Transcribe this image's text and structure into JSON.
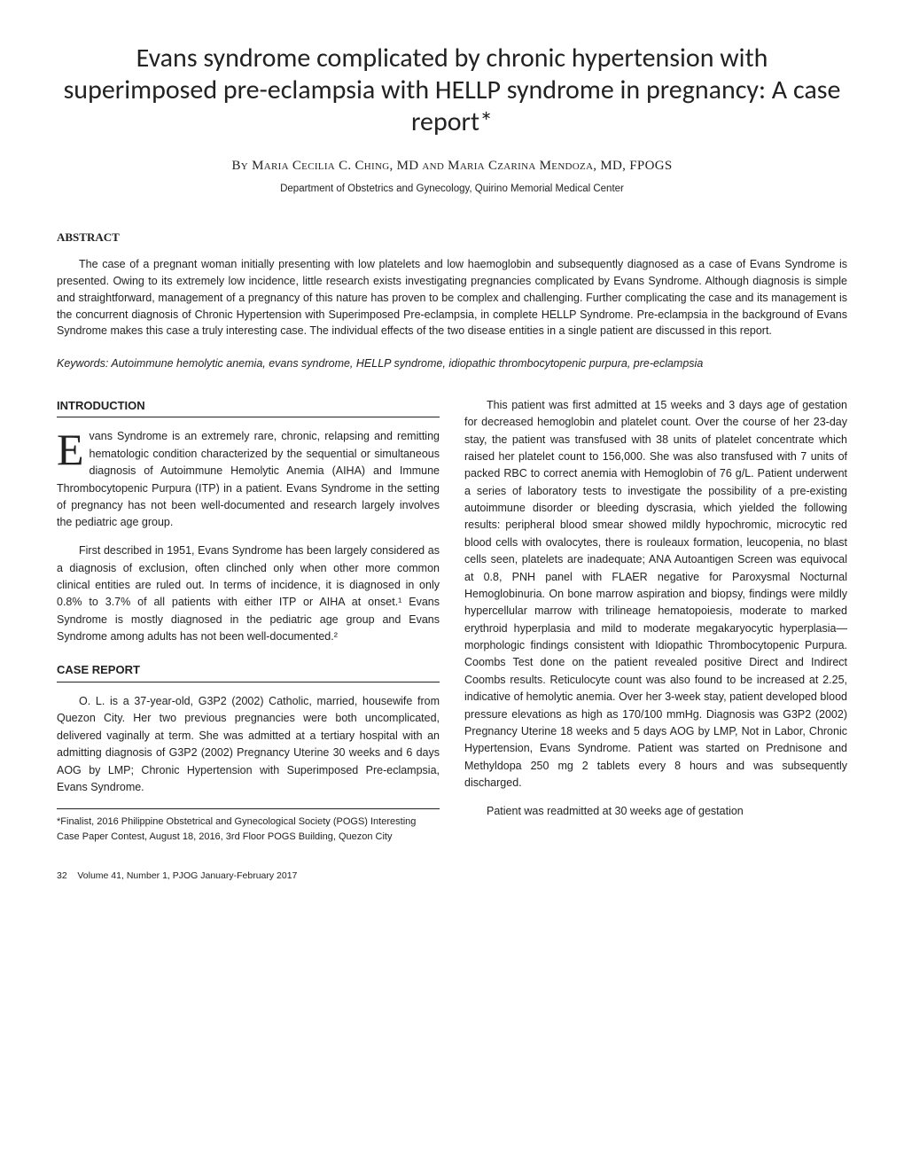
{
  "title": "Evans syndrome complicated by chronic hypertension with superimposed pre-eclampsia with HELLP syndrome in pregnancy: A case report*",
  "authors": "By Maria Cecilia C. Ching, MD and Maria Czarina Mendoza, MD, FPOGS",
  "affiliation": "Department of Obstetrics and Gynecology, Quirino Memorial Medical Center",
  "abstract_heading": "ABSTRACT",
  "abstract_text": "The case of a pregnant woman initially presenting with low platelets and low haemoglobin and subsequently diagnosed as a case of Evans Syndrome is presented. Owing to its extremely low incidence, little research exists investigating pregnancies complicated by Evans Syndrome. Although diagnosis is simple and straightforward, management of a pregnancy of this nature has proven to be complex and challenging. Further complicating the case and its management is the concurrent diagnosis of Chronic Hypertension with Superimposed Pre-eclampsia, in complete HELLP Syndrome. Pre-eclampsia in the background of Evans Syndrome makes this case a truly interesting case. The individual effects of the two disease entities in a single patient are discussed in this report.",
  "keywords": "Keywords: Autoimmune hemolytic anemia, evans syndrome, HELLP syndrome, idiopathic thrombocytopenic purpura, pre-eclampsia",
  "intro_heading": "INTRODUCTION",
  "intro_p1": "Evans Syndrome is an extremely rare, chronic, relapsing and remitting hematologic condition characterized by the sequential or simultaneous diagnosis of Autoimmune Hemolytic Anemia (AIHA) and Immune Thrombocytopenic Purpura (ITP) in a patient. Evans Syndrome in the setting of pregnancy has not been well-documented and research largely involves the pediatric age group.",
  "intro_p2": "First described in 1951, Evans Syndrome has been largely considered as a diagnosis of exclusion, often clinched only when other more common clinical entities are ruled out. In terms of incidence, it is diagnosed in only 0.8% to 3.7% of all patients with either ITP or AIHA at onset.¹ Evans Syndrome is mostly diagnosed in the pediatric age group and Evans Syndrome among adults has not been well-documented.²",
  "case_heading": "CASE REPORT",
  "case_p1": "O. L. is a 37-year-old, G3P2 (2002) Catholic, married, housewife from Quezon City. Her two previous pregnancies were both uncomplicated, delivered vaginally at term. She was admitted at a tertiary hospital with an admitting diagnosis of G3P2 (2002) Pregnancy Uterine 30 weeks and 6 days AOG by LMP; Chronic Hypertension with Superimposed Pre-eclampsia, Evans Syndrome.",
  "footnote": "*Finalist, 2016 Philippine Obstetrical and Gynecological Society (POGS) Interesting Case Paper Contest, August 18, 2016, 3rd Floor POGS Building, Quezon City",
  "col2_p1": "This patient was first admitted at 15 weeks and 3 days age of gestation for decreased hemoglobin and platelet count. Over the course of her 23-day stay, the patient was transfused with 38 units of platelet concentrate which raised her platelet count to 156,000. She was also transfused with 7 units of packed RBC to correct anemia with Hemoglobin of 76 g/L. Patient underwent a series of laboratory tests to investigate the possibility of a pre-existing autoimmune disorder or bleeding dyscrasia, which yielded the following results: peripheral blood smear showed mildly hypochromic, microcytic red blood cells with ovalocytes, there is rouleaux formation, leucopenia, no blast cells seen, platelets are inadequate; ANA Autoantigen Screen was equivocal at 0.8, PNH panel with FLAER negative for Paroxysmal Nocturnal Hemoglobinuria. On bone marrow aspiration and biopsy, findings were mildly hypercellular marrow with trilineage hematopoiesis, moderate to marked erythroid hyperplasia and mild to moderate megakaryocytic hyperplasia—morphologic findings consistent with Idiopathic Thrombocytopenic Purpura. Coombs Test done on the patient revealed positive Direct and Indirect Coombs results. Reticulocyte count was also found to be increased at 2.25, indicative of hemolytic anemia. Over her 3-week stay, patient developed blood pressure elevations as high as 170/100 mmHg. Diagnosis was G3P2 (2002) Pregnancy Uterine 18 weeks and 5 days AOG by LMP, Not in Labor, Chronic Hypertension, Evans Syndrome. Patient was started on Prednisone and Methyldopa 250 mg 2 tablets every 8 hours and was subsequently discharged.",
  "col2_p2": "Patient was readmitted at 30 weeks age of gestation",
  "footer_page": "32",
  "footer_text": "Volume 41, Number 1, PJOG January-February 2017"
}
